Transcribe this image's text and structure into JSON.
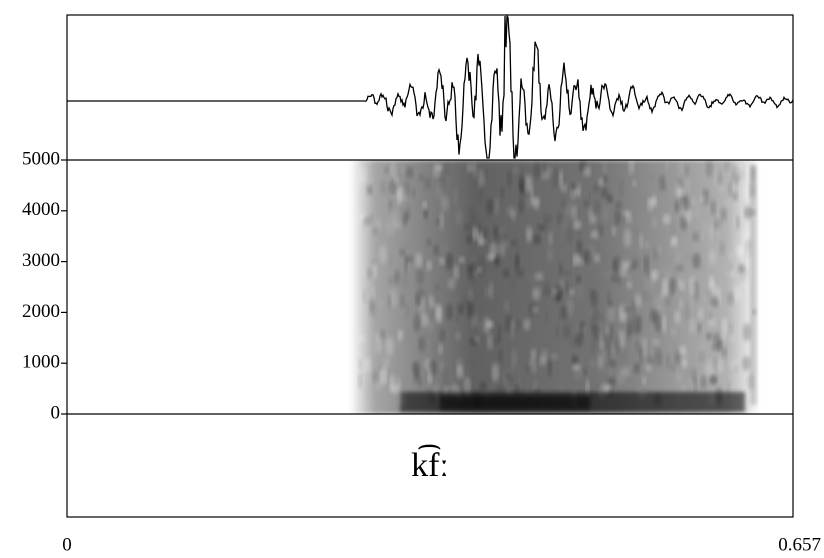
{
  "chart_data": {
    "type": "spectrogram",
    "xlim": [
      0,
      0.657
    ],
    "xticks": [
      0,
      0.657
    ],
    "ylim": [
      0,
      5000
    ],
    "yticks": [
      0,
      1000,
      2000,
      3000,
      4000,
      5000
    ],
    "annotation": "k͡fː"
  }
}
